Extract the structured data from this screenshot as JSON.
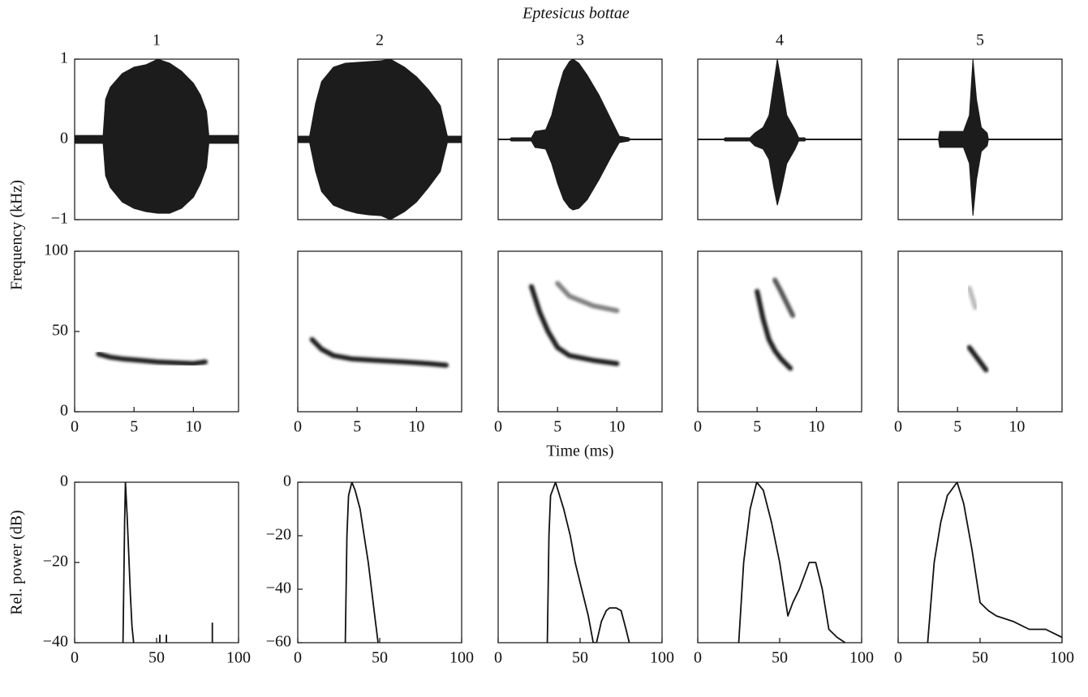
{
  "title": "Eptesicus bottae",
  "chart_data": [
    {
      "type": "waveform",
      "title": "1",
      "xlim": [
        0,
        13.8
      ],
      "ylim": [
        -1,
        1
      ],
      "yticks": [
        {
          "value": -1,
          "label": "−1"
        },
        0,
        1
      ],
      "x": [
        0,
        2.4,
        2.6,
        3,
        4,
        5,
        6,
        7,
        8,
        9,
        10,
        10.6,
        11.1,
        11.3,
        13.8
      ],
      "upper": [
        0.05,
        0.05,
        0.5,
        0.65,
        0.82,
        0.9,
        0.93,
        1,
        0.95,
        0.85,
        0.7,
        0.55,
        0.35,
        0.05,
        0.05
      ],
      "lower": [
        -0.05,
        -0.05,
        -0.45,
        -0.6,
        -0.78,
        -0.86,
        -0.9,
        -0.92,
        -0.92,
        -0.86,
        -0.72,
        -0.55,
        -0.35,
        -0.05,
        -0.05
      ],
      "color": "#1c1c1c"
    },
    {
      "type": "waveform",
      "title": "2",
      "xlim": [
        0,
        13.8
      ],
      "ylim": [
        -1,
        1
      ],
      "x": [
        0,
        1,
        1.5,
        2,
        3,
        4,
        5,
        6,
        7,
        7.8,
        9,
        10,
        11,
        12,
        12.6,
        13.8
      ],
      "upper": [
        0.04,
        0.04,
        0.45,
        0.72,
        0.9,
        0.95,
        0.96,
        0.97,
        0.98,
        1,
        0.9,
        0.78,
        0.62,
        0.42,
        0.04,
        0.04
      ],
      "lower": [
        -0.04,
        -0.04,
        -0.4,
        -0.65,
        -0.82,
        -0.88,
        -0.92,
        -0.94,
        -0.95,
        -1,
        -0.9,
        -0.78,
        -0.6,
        -0.4,
        -0.04,
        -0.04
      ],
      "color": "#1c1c1c"
    },
    {
      "type": "waveform",
      "title": "3",
      "xlim": [
        0,
        13.8
      ],
      "ylim": [
        -1,
        1
      ],
      "x": [
        0,
        1,
        1.1,
        2.8,
        3.1,
        4,
        4.5,
        5,
        5.5,
        6,
        6.3,
        6.8,
        7.5,
        8.5,
        9.5,
        10.2,
        11,
        11.1,
        13.8
      ],
      "upper": [
        0.005,
        0.005,
        0.02,
        0.02,
        0.1,
        0.12,
        0.3,
        0.6,
        0.85,
        0.97,
        1,
        0.95,
        0.8,
        0.55,
        0.25,
        0.04,
        0.02,
        0.005,
        0.005
      ],
      "lower": [
        -0.005,
        -0.005,
        -0.02,
        -0.02,
        -0.1,
        -0.12,
        -0.3,
        -0.55,
        -0.75,
        -0.85,
        -0.88,
        -0.86,
        -0.75,
        -0.5,
        -0.22,
        -0.04,
        -0.02,
        -0.005,
        -0.005
      ],
      "color": "#1c1c1c"
    },
    {
      "type": "waveform",
      "title": "4",
      "xlim": [
        0,
        13.8
      ],
      "ylim": [
        -1,
        1
      ],
      "x": [
        0,
        2.2,
        2.3,
        4.4,
        4.8,
        5.5,
        6,
        6.4,
        6.7,
        7,
        7.5,
        8.2,
        8.5,
        9,
        9.1,
        13.8
      ],
      "upper": [
        0.005,
        0.005,
        0.02,
        0.02,
        0.08,
        0.15,
        0.3,
        0.7,
        1,
        0.75,
        0.3,
        0.12,
        0.02,
        0.02,
        0.005,
        0.005
      ],
      "lower": [
        -0.005,
        -0.005,
        -0.02,
        -0.02,
        -0.08,
        -0.12,
        -0.25,
        -0.6,
        -0.82,
        -0.65,
        -0.3,
        -0.12,
        -0.02,
        -0.02,
        -0.005,
        -0.005
      ],
      "color": "#1c1c1c"
    },
    {
      "type": "waveform",
      "title": "5",
      "xlim": [
        0,
        13.8
      ],
      "ylim": [
        -1,
        1
      ],
      "x": [
        0,
        3.4,
        3.5,
        5.5,
        6,
        6.3,
        6.6,
        7,
        7.5,
        7.6,
        13.8
      ],
      "upper": [
        0.005,
        0.005,
        0.1,
        0.1,
        0.3,
        1,
        0.5,
        0.15,
        0.08,
        0.005,
        0.005
      ],
      "lower": [
        -0.005,
        -0.005,
        -0.1,
        -0.1,
        -0.3,
        -0.95,
        -0.5,
        -0.15,
        -0.08,
        -0.005,
        -0.005
      ],
      "color": "#1c1c1c"
    },
    {
      "type": "spectrogram",
      "ylabel": "Frequency (kHz)",
      "xlim": [
        0,
        13.8
      ],
      "ylim": [
        0,
        100
      ],
      "yticks": [
        0,
        50,
        100
      ],
      "xticks": [
        0,
        5,
        10
      ],
      "series": [
        {
          "color": "#1a1a1a",
          "x": [
            2,
            3,
            4,
            5.5,
            7,
            8.5,
            10,
            11
          ],
          "values": [
            36,
            34,
            33,
            32,
            31,
            30.5,
            30,
            31
          ]
        }
      ]
    },
    {
      "type": "spectrogram",
      "xlim": [
        0,
        13.8
      ],
      "ylim": [
        0,
        100
      ],
      "xticks": [
        0,
        5,
        10
      ],
      "series": [
        {
          "color": "#1a1a1a",
          "x": [
            1.2,
            2,
            3,
            4.5,
            6.5,
            9,
            11,
            12.5
          ],
          "values": [
            45,
            39,
            35,
            33,
            32,
            31,
            30,
            29
          ]
        }
      ]
    },
    {
      "type": "spectrogram",
      "xlabel": "Time (ms)",
      "xlim": [
        0,
        13.8
      ],
      "ylim": [
        0,
        100
      ],
      "xticks": [
        0,
        5,
        10
      ],
      "series": [
        {
          "color": "#1a1a1a",
          "x": [
            2.8,
            3.5,
            4.2,
            5,
            6,
            8,
            10
          ],
          "values": [
            78,
            62,
            50,
            40,
            35,
            32,
            30
          ]
        },
        {
          "color": "#808080",
          "x": [
            5,
            6,
            8,
            10
          ],
          "values": [
            80,
            72,
            66,
            63
          ]
        }
      ]
    },
    {
      "type": "spectrogram",
      "xlim": [
        0,
        13.8
      ],
      "ylim": [
        0,
        100
      ],
      "xticks": [
        0,
        5,
        10
      ],
      "series": [
        {
          "color": "#1a1a1a",
          "x": [
            5,
            5.5,
            6,
            6.5,
            7,
            7.8
          ],
          "values": [
            75,
            58,
            45,
            38,
            33,
            27
          ]
        },
        {
          "color": "#555555",
          "x": [
            6.5,
            7,
            8
          ],
          "values": [
            82,
            75,
            60
          ]
        }
      ]
    },
    {
      "type": "spectrogram",
      "xlim": [
        0,
        13.8
      ],
      "ylim": [
        0,
        100
      ],
      "xticks": [
        0,
        5,
        10
      ],
      "series": [
        {
          "color": "#1a1a1a",
          "x": [
            6,
            6.5,
            7,
            7.4
          ],
          "values": [
            40,
            35,
            30,
            26
          ]
        },
        {
          "color": "#bbbbbb",
          "x": [
            6,
            6.5
          ],
          "values": [
            77,
            65
          ]
        }
      ]
    },
    {
      "type": "line",
      "ylabel": "Rel. power (dB)",
      "xlim": [
        0,
        100
      ],
      "ylim": [
        -40,
        0
      ],
      "yticks": [
        {
          "value": -40,
          "label": "−40"
        },
        {
          "value": -20,
          "label": "−20"
        },
        0
      ],
      "xticks": [
        0,
        50,
        100
      ],
      "color": "#111111",
      "x": [
        29.5,
        30.5,
        31,
        32,
        33,
        34,
        35,
        36,
        null,
        52,
        52,
        null,
        56,
        56,
        null,
        84,
        84
      ],
      "values": [
        -40,
        -10,
        0,
        -8,
        -18,
        -28,
        -36,
        -40,
        null,
        -40,
        -38,
        null,
        -40,
        -38,
        null,
        -40,
        -35
      ]
    },
    {
      "type": "line",
      "xlim": [
        0,
        100
      ],
      "ylim": [
        -60,
        0
      ],
      "yticks": [
        {
          "value": -60,
          "label": "−60"
        },
        {
          "value": -40,
          "label": "−40"
        },
        {
          "value": -20,
          "label": "−20"
        },
        0
      ],
      "xticks": [
        0,
        50,
        100
      ],
      "color": "#111111",
      "x": [
        29,
        30,
        31,
        33,
        35,
        38,
        40,
        43,
        45,
        47,
        49
      ],
      "values": [
        -60,
        -20,
        -5,
        0,
        -3,
        -10,
        -18,
        -30,
        -40,
        -50,
        -60
      ]
    },
    {
      "type": "line",
      "xticks": [
        0,
        50,
        100
      ],
      "xlim": [
        0,
        100
      ],
      "ylim": [
        -60,
        0
      ],
      "color": "#111111",
      "x": [
        30,
        31,
        32,
        35,
        40,
        44,
        47,
        51,
        55,
        58,
        60,
        63,
        66,
        68,
        72,
        75,
        78,
        80
      ],
      "values": [
        -60,
        -20,
        -5,
        0,
        -10,
        -20,
        -30,
        -40,
        -50,
        -60,
        -60,
        -52,
        -48,
        -47,
        -47,
        -48,
        -55,
        -60
      ]
    },
    {
      "type": "line",
      "xticks": [
        0,
        50,
        100
      ],
      "xlim": [
        0,
        100
      ],
      "ylim": [
        -60,
        0
      ],
      "color": "#111111",
      "x": [
        25,
        28,
        32,
        36,
        40,
        45,
        50,
        55,
        58,
        62,
        68,
        72,
        76,
        80,
        85,
        90
      ],
      "values": [
        -60,
        -30,
        -10,
        0,
        -3,
        -15,
        -30,
        -50,
        -45,
        -40,
        -30,
        -30,
        -40,
        -55,
        -58,
        -60
      ]
    },
    {
      "type": "line",
      "xticks": [
        0,
        50,
        100
      ],
      "xlim": [
        0,
        100
      ],
      "ylim": [
        -60,
        0
      ],
      "color": "#111111",
      "x": [
        18,
        22,
        26,
        30,
        36,
        40,
        45,
        50,
        55,
        60,
        70,
        80,
        90,
        100
      ],
      "values": [
        -60,
        -30,
        -15,
        -5,
        0,
        -8,
        -25,
        -45,
        -48,
        -50,
        -52,
        -55,
        -55,
        -58
      ]
    }
  ]
}
